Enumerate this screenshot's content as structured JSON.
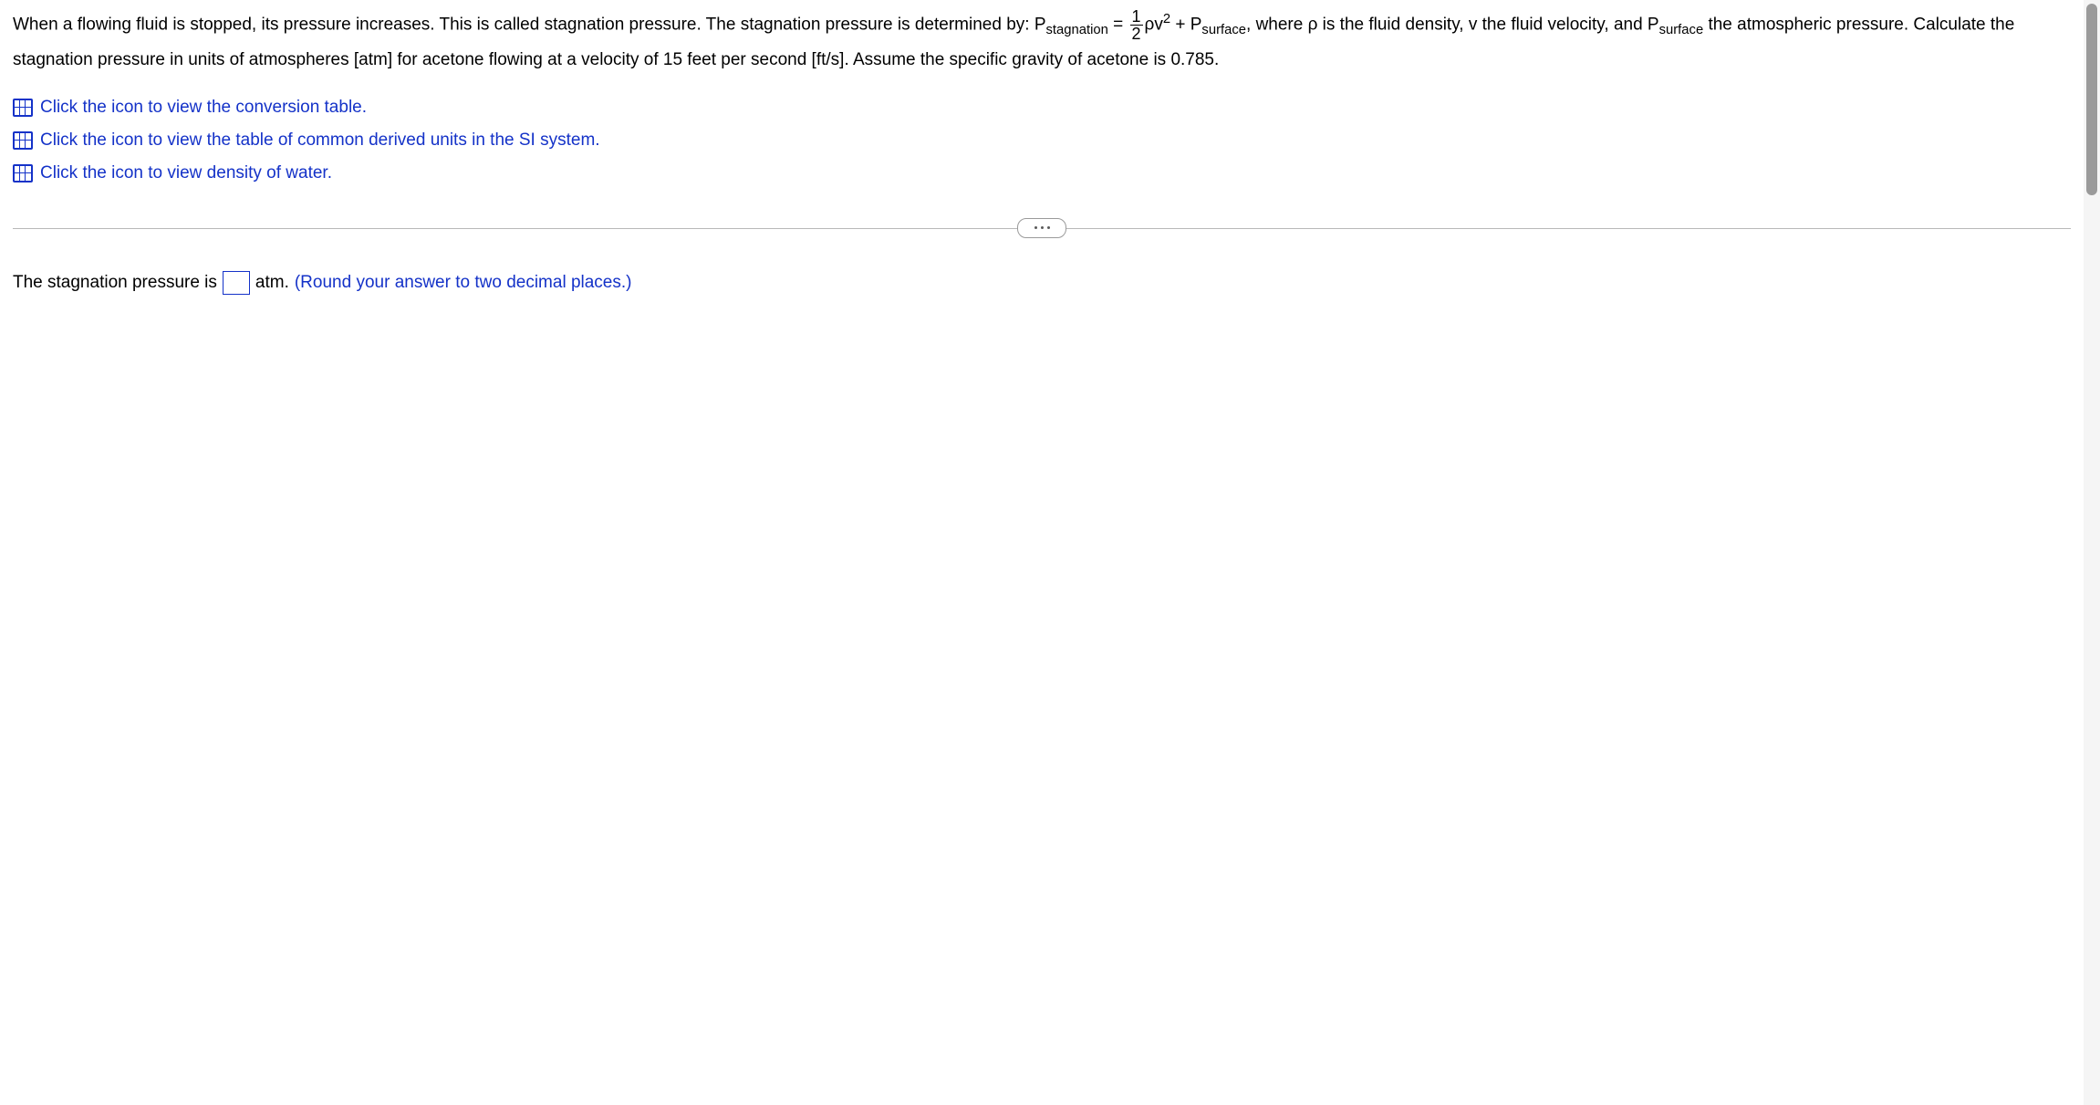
{
  "problem": {
    "text1": "When a flowing fluid is stopped, its pressure increases. This is called stagnation pressure. The stagnation pressure is determined by: P",
    "sub1": "stagnation",
    "eq": " = ",
    "frac_num": "1",
    "frac_den": "2",
    "rho_v": "ρv",
    "sup2": "2",
    "plus": " + P",
    "sub2": "surface",
    "comma": ", ",
    "text2": "where ρ is the fluid density, v the fluid velocity, and P",
    "sub3": "surface",
    "text3": " the atmospheric pressure. Calculate the stagnation pressure in units of atmospheres [atm] for acetone flowing at a velocity of 15 feet per second [ft/s]. Assume the specific gravity of acetone is 0.785."
  },
  "links": {
    "l1": "Click the icon to view the conversion table.",
    "l2": "Click the icon to view the table of common derived units in the SI system.",
    "l3": "Click the icon to view density of water."
  },
  "answer": {
    "prefix": "The stagnation pressure is",
    "unit": "atm.",
    "hint": "(Round your answer to two decimal places.)"
  }
}
